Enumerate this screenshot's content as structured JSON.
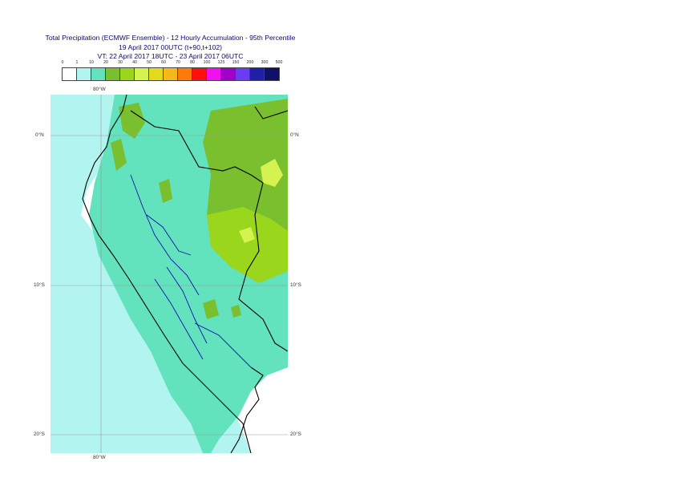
{
  "title": {
    "line1": "Total Precipitation (ECMWF Ensemble) - 12 Hourly Accumulation - 95th Percentile",
    "line2": "19 April 2017 00UTC (t+90,t+102)",
    "line3": "VT: 22 April 2017 18UTC - 23 April 2017 06UTC"
  },
  "legend": {
    "thresholds": [
      "0",
      "1",
      "10",
      "20",
      "30",
      "40",
      "50",
      "60",
      "70",
      "80",
      "100",
      "125",
      "150",
      "200",
      "300",
      "500"
    ],
    "colors": [
      "#ffffff",
      "#b2f4f0",
      "#62e2bd",
      "#7abf2e",
      "#9ad61c",
      "#d4f250",
      "#e2da1c",
      "#f5b91c",
      "#ff7a0a",
      "#ff1010",
      "#f010f0",
      "#a000c8",
      "#6a3cf2",
      "#1f1fa8",
      "#10106a"
    ]
  },
  "map": {
    "colors": {
      "ocean_light": "#b2f4f0",
      "land_mid": "#62e2bd",
      "band_green": "#7abf2e",
      "band_lime": "#9ad61c",
      "band_yellow": "#d4f250",
      "border_black": "#000000",
      "border_blue": "#1010b0",
      "grid": "#9a9a9a"
    },
    "labels": {
      "lon_top": "80°W",
      "lon_bottom": "80°W",
      "lat_0_left": "0°N",
      "lat_0_right": "0°N",
      "lat_10_left": "10°S",
      "lat_10_right": "10°S",
      "lat_20_left": "20°S",
      "lat_20_right": "20°S"
    }
  }
}
